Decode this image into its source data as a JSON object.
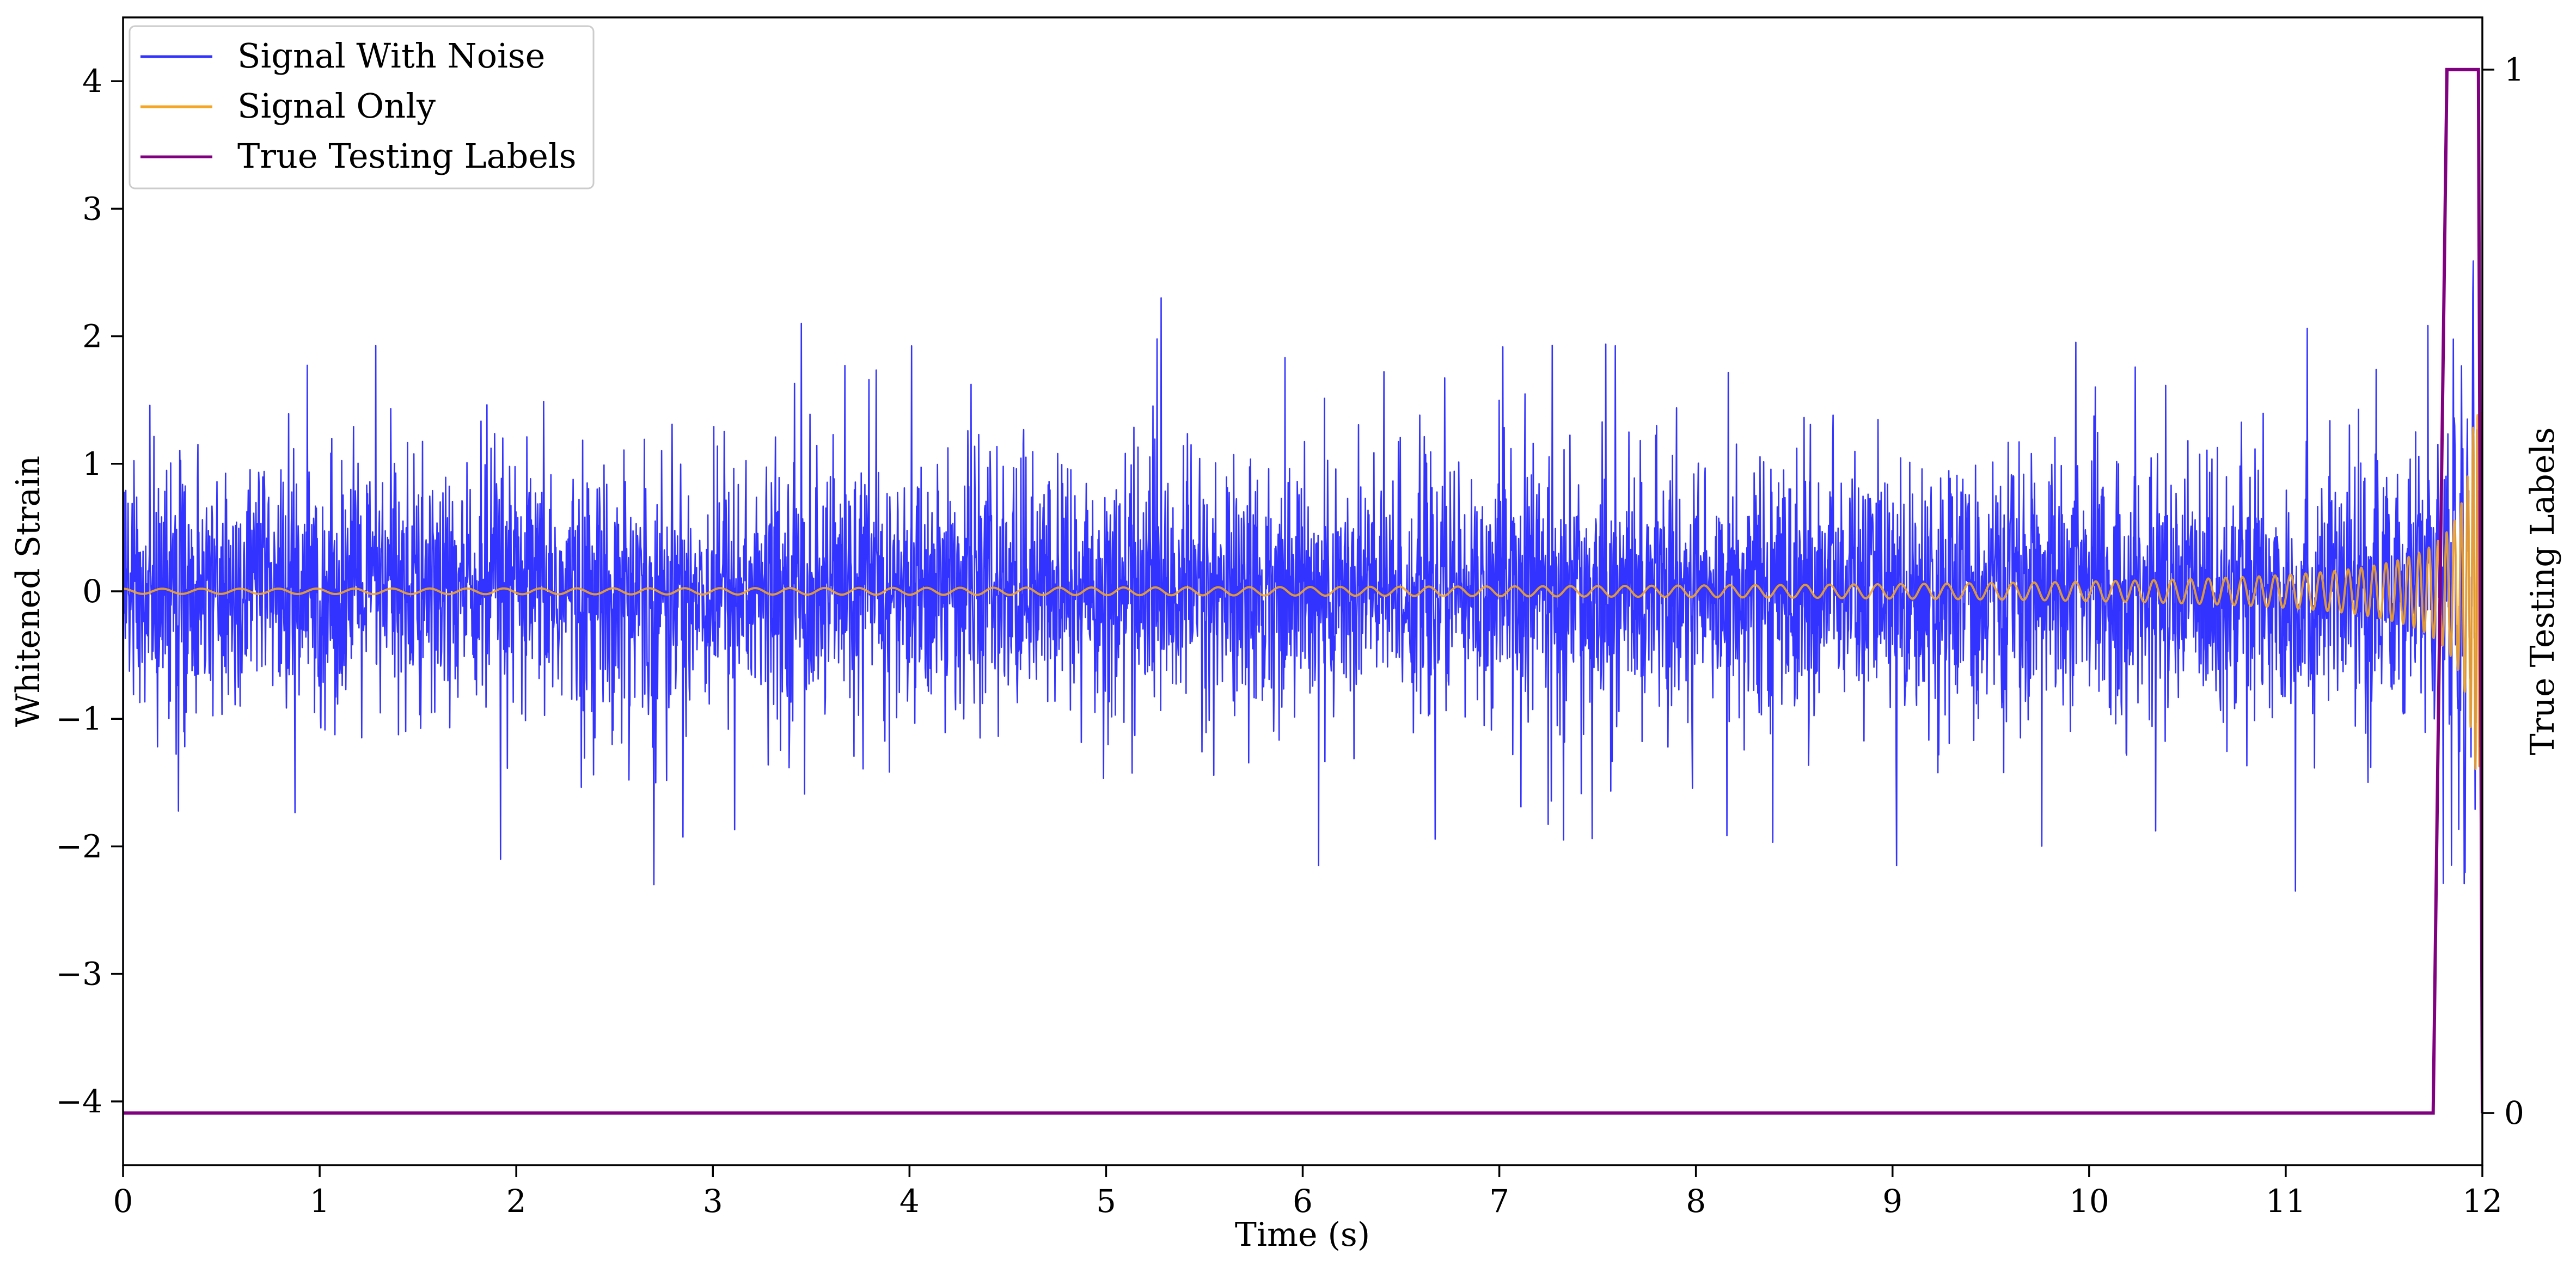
{
  "chart_data": {
    "type": "line",
    "title": "",
    "xlabel": "Time (s)",
    "ylabel": "Whitened Strain",
    "y2label": "True Testing Labels",
    "xlim": [
      0,
      12
    ],
    "ylim": [
      -4.5,
      4.5
    ],
    "y2lim": [
      -0.05,
      1.05
    ],
    "x_ticks": [
      0,
      1,
      2,
      3,
      4,
      5,
      6,
      7,
      8,
      9,
      10,
      11,
      12
    ],
    "x_tick_labels": [
      "0",
      "1",
      "2",
      "3",
      "4",
      "5",
      "6",
      "7",
      "8",
      "9",
      "10",
      "11",
      "12"
    ],
    "y_ticks": [
      -4,
      -3,
      -2,
      -1,
      0,
      1,
      2,
      3,
      4
    ],
    "y_tick_labels": [
      "−4",
      "−3",
      "−2",
      "−1",
      "0",
      "1",
      "2",
      "3",
      "4"
    ],
    "y2_ticks": [
      0,
      1
    ],
    "y2_tick_labels": [
      "0",
      "1"
    ],
    "grid": false,
    "legend_position": "top-left",
    "series": [
      {
        "name": "Signal With Noise",
        "axis": "left",
        "color": "#3333ff",
        "description_values": {
          "typical_amplitude": 0.6,
          "peak_points": [
            {
              "x": 5.28,
              "y": 2.3
            },
            {
              "x": 3.45,
              "y": 2.1
            },
            {
              "x": 2.7,
              "y": -2.3
            },
            {
              "x": 11.05,
              "y": -2.35
            },
            {
              "x": 6.08,
              "y": -2.15
            },
            {
              "x": 9.02,
              "y": -2.15
            },
            {
              "x": 1.92,
              "y": -2.1
            },
            {
              "x": 12.0,
              "y": 4.15
            },
            {
              "x": 0.0,
              "y": -4.1
            }
          ]
        }
      },
      {
        "name": "Signal Only",
        "axis": "left",
        "color": "#f5a623",
        "description_values": {
          "amplitude_start": 0.02,
          "amplitude_end": 1.4,
          "frequency_start_hz": 5,
          "frequency_end_hz": 60,
          "chirp_end_x": 12.0
        }
      },
      {
        "name": "True Testing Labels",
        "axis": "right",
        "color": "#800080",
        "x": [
          0,
          11.75,
          11.82,
          11.98,
          12.0
        ],
        "values": [
          0,
          0,
          1,
          1,
          0
        ]
      }
    ]
  }
}
